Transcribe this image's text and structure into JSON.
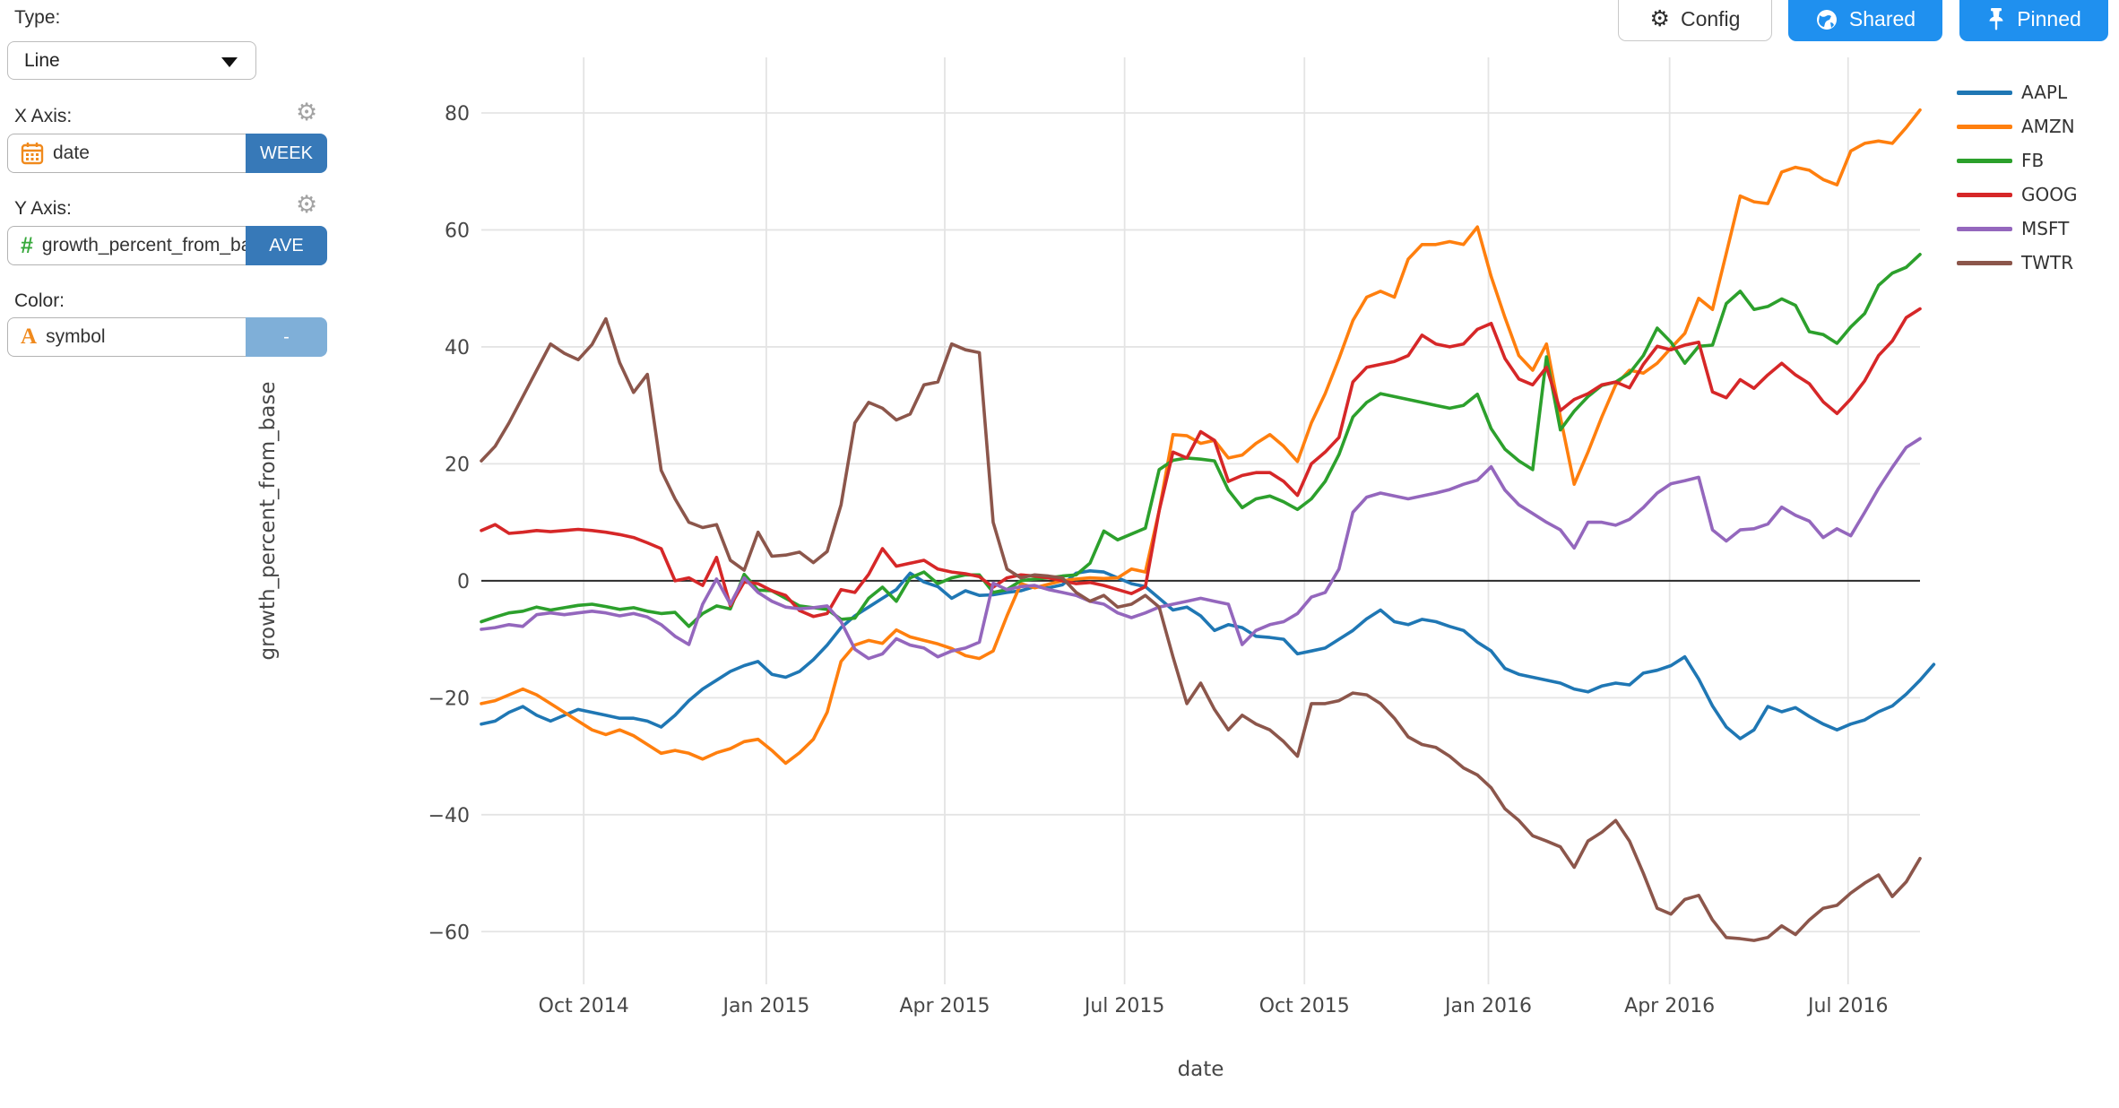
{
  "sidebar": {
    "type_label": "Type:",
    "type_value": "Line",
    "x_axis_label": "X Axis:",
    "x_axis_field": "date",
    "x_axis_agg": "WEEK",
    "y_axis_label": "Y Axis:",
    "y_axis_field": "growth_percent_from_base",
    "y_axis_agg": "AVE",
    "color_label": "Color:",
    "color_field": "symbol",
    "color_agg": "-"
  },
  "toolbar": {
    "config_label": "Config",
    "shared_label": "Shared",
    "pinned_label": "Pinned"
  },
  "colors": {
    "accent_blue": "#1f90ef",
    "agg_dark_blue": "#3779b8",
    "agg_light_blue": "#7fafd8",
    "grid": "#e4e4e4",
    "zero_line": "#2b2b2b",
    "tick_text": "#474747"
  },
  "chart_data": {
    "type": "line",
    "title": "",
    "xlabel": "date",
    "ylabel": "growth_percent_from_base",
    "grid": true,
    "legend_position": "right",
    "x_unit": "weeks from 2014-08 to 2016-08",
    "x_weeks_total": 104,
    "x_tick_weeks": [
      7.4,
      20.6,
      33.5,
      46.5,
      59.5,
      72.8,
      85.9,
      98.8
    ],
    "x_tick_labels": [
      "Oct 2014",
      "Jan 2015",
      "Apr 2015",
      "Jul 2015",
      "Oct 2015",
      "Jan 2016",
      "Apr 2016",
      "Jul 2016"
    ],
    "y_ticks": [
      80,
      60,
      40,
      20,
      0,
      -20,
      -40,
      -60
    ],
    "ylim": [
      -69,
      89.5
    ],
    "zero_line": true,
    "series": [
      {
        "name": "AAPL",
        "color": "#1f77b4",
        "values": [
          -24.5,
          -24,
          -22.5,
          -21.5,
          -23,
          -24,
          -23,
          -22,
          -22.5,
          -23,
          -23.5,
          -23.5,
          -24,
          -25,
          -23,
          -20.5,
          -18.5,
          -17,
          -15.5,
          -14.5,
          -13.8,
          -16,
          -16.5,
          -15.5,
          -13.5,
          -11,
          -8,
          -6,
          -4.5,
          -3,
          -1.5,
          1.3,
          -0.2,
          -1,
          -3,
          -1.7,
          -2.5,
          -2.4,
          -2,
          -1.7,
          -1,
          -1.2,
          -0.7,
          1.3,
          1.7,
          1.5,
          0.5,
          -0.5,
          -1,
          -3,
          -5,
          -4.5,
          -6,
          -8.5,
          -7.5,
          -8,
          -9.5,
          -9.7,
          -10,
          -12.5,
          -12,
          -11.5,
          -10,
          -8.5,
          -6.5,
          -5,
          -7,
          -7.5,
          -6.6,
          -7,
          -7.8,
          -8.5,
          -10.5,
          -12,
          -15,
          -16,
          -16.5,
          -17,
          -17.5,
          -18.5,
          -19,
          -18,
          -17.5,
          -17.8,
          -15.8,
          -15.3,
          -14.5,
          -13,
          -16.8,
          -21.4,
          -25,
          -27,
          -25.5,
          -21.5,
          -22.4,
          -21.7,
          -23.2,
          -24.5,
          -25.5,
          -24.5,
          -23.8,
          -22.4,
          -21.4,
          -19.4,
          -17,
          -14.3
        ]
      },
      {
        "name": "AMZN",
        "color": "#ff7f0e",
        "values": [
          -21,
          -20.5,
          -19.5,
          -18.5,
          -19.5,
          -21,
          -22.5,
          -24,
          -25.5,
          -26.3,
          -25.5,
          -26.5,
          -28,
          -29.5,
          -29,
          -29.5,
          -30.5,
          -29.4,
          -28.7,
          -27.5,
          -27.1,
          -29,
          -31.2,
          -29.4,
          -27.1,
          -22.5,
          -13.8,
          -11,
          -10.2,
          -10.7,
          -8.4,
          -9.6,
          -10.2,
          -10.8,
          -11.6,
          -12.8,
          -13.3,
          -12,
          -6,
          -0.5,
          -1.2,
          -0.6,
          0,
          0.3,
          0.5,
          0.4,
          0.5,
          2,
          1.5,
          12,
          25,
          24.8,
          23.5,
          24,
          21,
          21.5,
          23.5,
          25,
          23,
          20.4,
          27,
          32,
          38,
          44.5,
          48.5,
          49.5,
          48.5,
          55,
          57.5,
          57.5,
          58,
          57.5,
          60.5,
          52,
          45,
          38.5,
          36,
          40.5,
          28,
          16.5,
          22,
          28,
          33.5,
          36,
          35.5,
          37.2,
          39.8,
          42.3,
          48.3,
          46.4,
          56,
          65.8,
          64.8,
          64.5,
          69.9,
          70.7,
          70.2,
          68.6,
          67.7,
          73.5,
          74.8,
          75.2,
          74.8,
          77.5,
          80.5
        ]
      },
      {
        "name": "FB",
        "color": "#2ca02c",
        "values": [
          -7,
          -6.2,
          -5.5,
          -5.2,
          -4.5,
          -5,
          -4.6,
          -4.2,
          -4,
          -4.4,
          -4.9,
          -4.6,
          -5.2,
          -5.6,
          -5.4,
          -7.8,
          -5.6,
          -4.3,
          -4.8,
          1.1,
          -1.6,
          -1.7,
          -3,
          -4.3,
          -4.6,
          -4.9,
          -6.6,
          -6.4,
          -3,
          -1.1,
          -3.5,
          0.5,
          1.5,
          -0.5,
          0.5,
          1,
          1,
          -2,
          -1.5,
          0,
          0.3,
          0.5,
          0.8,
          1,
          3,
          8.5,
          7,
          8,
          9,
          19,
          20.6,
          21,
          20.8,
          20.5,
          15.5,
          12.5,
          14,
          14.5,
          13.5,
          12.2,
          14,
          17,
          21.6,
          28,
          30.5,
          32,
          31.5,
          31,
          30.5,
          30,
          29.5,
          30,
          31.9,
          26,
          22.5,
          20.5,
          19,
          38.3,
          25.8,
          29,
          31.5,
          33.4,
          34,
          35.5,
          38.5,
          43.2,
          40.8,
          37.2,
          40.1,
          40.3,
          47.4,
          49.5,
          46.4,
          46.9,
          48.2,
          47.1,
          42.6,
          42.1,
          40.6,
          43.4,
          45.7,
          50.5,
          52.6,
          53.6,
          55.8
        ]
      },
      {
        "name": "GOOG",
        "color": "#d62728",
        "values": [
          8.6,
          9.6,
          8.1,
          8.3,
          8.6,
          8.4,
          8.6,
          8.8,
          8.6,
          8.3,
          7.9,
          7.4,
          6.5,
          5.5,
          0,
          0.5,
          -0.8,
          4,
          -4.3,
          -0.2,
          -0.5,
          -1.7,
          -2.5,
          -5.1,
          -6.1,
          -5.6,
          -1.5,
          -2,
          1.1,
          5.5,
          2.5,
          3,
          3.5,
          2,
          1.5,
          1.2,
          0.7,
          -1.1,
          0.5,
          1,
          0.8,
          0.5,
          0,
          -0.5,
          -0.3,
          -0.8,
          -1.5,
          -2.2,
          -1,
          12,
          22,
          21,
          25.5,
          24,
          17,
          18,
          18.5,
          18.5,
          17,
          14.6,
          20,
          22,
          24.5,
          34,
          36.5,
          37,
          37.5,
          38.5,
          42,
          40.5,
          40,
          40.5,
          43,
          44,
          38,
          34.5,
          33.5,
          36.5,
          29.1,
          31,
          32,
          33.5,
          34,
          33,
          37,
          40.1,
          39.5,
          40.3,
          40.8,
          32.3,
          31.3,
          34.4,
          32.9,
          35.2,
          37.2,
          35.2,
          33.7,
          30.6,
          28.6,
          31.1,
          34.2,
          38.5,
          41,
          45,
          46.5
        ]
      },
      {
        "name": "MSFT",
        "color": "#9467bd",
        "values": [
          -8.3,
          -8,
          -7.5,
          -7.8,
          -5.8,
          -5.5,
          -5.8,
          -5.5,
          -5.2,
          -5.5,
          -6,
          -5.6,
          -6.2,
          -7.5,
          -9.5,
          -10.9,
          -4,
          0.3,
          -4,
          0.5,
          -2,
          -3.5,
          -4.5,
          -4.8,
          -4.6,
          -4.3,
          -7,
          -11.7,
          -13.3,
          -12.5,
          -9.9,
          -11,
          -11.5,
          -13,
          -12,
          -11.5,
          -10.5,
          -0.4,
          -1.5,
          -1,
          -0.8,
          -1.5,
          -2,
          -2.5,
          -3.5,
          -4,
          -5.5,
          -6.3,
          -5.5,
          -4.5,
          -4,
          -3.5,
          -3,
          -3.5,
          -4,
          -10.9,
          -8.5,
          -7.5,
          -7,
          -5.6,
          -2.8,
          -2,
          2,
          11.7,
          14.3,
          15,
          14.5,
          14,
          14.5,
          15,
          15.6,
          16.5,
          17.2,
          19.5,
          15.5,
          13,
          11.5,
          10,
          8.7,
          5.6,
          10,
          10,
          9.5,
          10.5,
          12.5,
          15,
          16.6,
          17.1,
          17.7,
          8.7,
          6.8,
          8.7,
          8.9,
          9.7,
          12.6,
          11.2,
          10.2,
          7.4,
          8.9,
          7.7,
          11.7,
          15.8,
          19.4,
          22.8,
          24.3
        ]
      },
      {
        "name": "TWTR",
        "color": "#8c564b",
        "values": [
          20.5,
          23,
          27,
          31.5,
          36,
          40.5,
          38.9,
          37.8,
          40.4,
          44.8,
          37.3,
          32.2,
          35.3,
          18.9,
          14,
          10,
          9.1,
          9.6,
          3.5,
          1.8,
          8.3,
          4.2,
          4.4,
          4.9,
          3.1,
          5,
          13,
          27,
          30.5,
          29.5,
          27.5,
          28.5,
          33.5,
          34,
          40.5,
          39.5,
          39,
          10,
          2,
          0.5,
          1,
          0.8,
          0.5,
          -2,
          -3.5,
          -2.5,
          -4.5,
          -4,
          -2.5,
          -4.5,
          -13,
          -21,
          -17.5,
          -22,
          -25.5,
          -23,
          -24.5,
          -25.5,
          -27.5,
          -30,
          -21,
          -21,
          -20.5,
          -19.2,
          -19.5,
          -21,
          -23.5,
          -26.7,
          -28,
          -28.5,
          -30,
          -32,
          -33.2,
          -35.4,
          -39,
          -41,
          -43.6,
          -44.5,
          -45.5,
          -49,
          -44.5,
          -43,
          -41,
          -44.5,
          -50,
          -56,
          -57,
          -54.5,
          -53.8,
          -58,
          -61,
          -61.2,
          -61.5,
          -61,
          -59,
          -60.5,
          -58,
          -56,
          -55.5,
          -53.4,
          -51.7,
          -50.3,
          -54,
          -51.5,
          -47.5
        ]
      }
    ]
  }
}
